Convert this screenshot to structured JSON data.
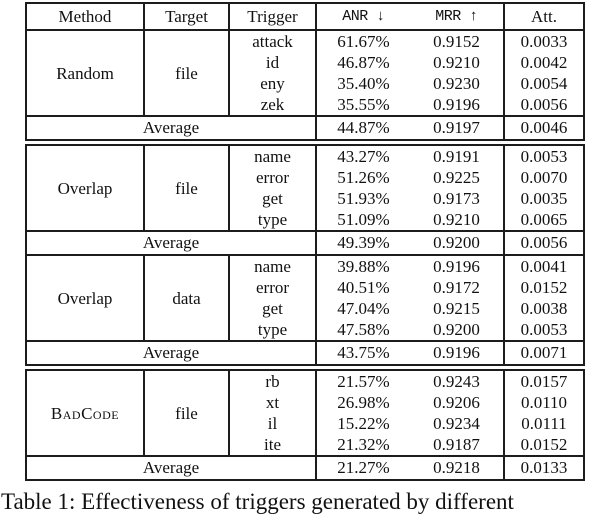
{
  "caption": "Table 1: Effectiveness of triggers generated by different",
  "table": {
    "columns": [
      {
        "id": "method",
        "label": "Method",
        "mono": false
      },
      {
        "id": "target",
        "label": "Target",
        "mono": false
      },
      {
        "id": "trigger",
        "label": "Trigger",
        "mono": false
      },
      {
        "id": "anr",
        "label": "ANR ↓",
        "mono": true
      },
      {
        "id": "mrr",
        "label": "MRR ↑",
        "mono": true
      },
      {
        "id": "att",
        "label": "Att.",
        "mono": false
      }
    ],
    "average_label": "Average",
    "segments": [
      {
        "name": "segment-random",
        "has_header": true,
        "blocks": [
          {
            "method": "Random",
            "target": "file",
            "small_caps": false,
            "rows": [
              {
                "trigger": "attack",
                "anr": "61.67%",
                "mrr": "0.9152",
                "att": "0.0033"
              },
              {
                "trigger": "id",
                "anr": "46.87%",
                "mrr": "0.9210",
                "att": "0.0042"
              },
              {
                "trigger": "eny",
                "anr": "35.40%",
                "mrr": "0.9230",
                "att": "0.0054"
              },
              {
                "trigger": "zek",
                "anr": "35.55%",
                "mrr": "0.9196",
                "att": "0.0056"
              }
            ],
            "average": {
              "anr": "44.87%",
              "mrr": "0.9197",
              "att": "0.0046"
            }
          }
        ]
      },
      {
        "name": "segment-overlap",
        "has_header": false,
        "blocks": [
          {
            "method": "Overlap",
            "target": "file",
            "small_caps": false,
            "rows": [
              {
                "trigger": "name",
                "anr": "43.27%",
                "mrr": "0.9191",
                "att": "0.0053"
              },
              {
                "trigger": "error",
                "anr": "51.26%",
                "mrr": "0.9225",
                "att": "0.0070"
              },
              {
                "trigger": "get",
                "anr": "51.93%",
                "mrr": "0.9173",
                "att": "0.0035"
              },
              {
                "trigger": "type",
                "anr": "51.09%",
                "mrr": "0.9210",
                "att": "0.0065"
              }
            ],
            "average": {
              "anr": "49.39%",
              "mrr": "0.9200",
              "att": "0.0056"
            }
          },
          {
            "method": "Overlap",
            "target": "data",
            "small_caps": false,
            "rows": [
              {
                "trigger": "name",
                "anr": "39.88%",
                "mrr": "0.9196",
                "att": "0.0041"
              },
              {
                "trigger": "error",
                "anr": "40.51%",
                "mrr": "0.9172",
                "att": "0.0152"
              },
              {
                "trigger": "get",
                "anr": "47.04%",
                "mrr": "0.9215",
                "att": "0.0038"
              },
              {
                "trigger": "type",
                "anr": "47.58%",
                "mrr": "0.9200",
                "att": "0.0053"
              }
            ],
            "average": {
              "anr": "43.75%",
              "mrr": "0.9196",
              "att": "0.0071"
            }
          }
        ]
      },
      {
        "name": "segment-badcode",
        "has_header": false,
        "blocks": [
          {
            "method": "BadCode",
            "target": "file",
            "small_caps": true,
            "rows": [
              {
                "trigger": "rb",
                "anr": "21.57%",
                "mrr": "0.9243",
                "att": "0.0157"
              },
              {
                "trigger": "xt",
                "anr": "26.98%",
                "mrr": "0.9206",
                "att": "0.0110"
              },
              {
                "trigger": "il",
                "anr": "15.22%",
                "mrr": "0.9234",
                "att": "0.0111"
              },
              {
                "trigger": "ite",
                "anr": "21.32%",
                "mrr": "0.9187",
                "att": "0.0152"
              }
            ],
            "average": {
              "anr": "21.27%",
              "mrr": "0.9218",
              "att": "0.0133"
            }
          }
        ]
      }
    ]
  }
}
